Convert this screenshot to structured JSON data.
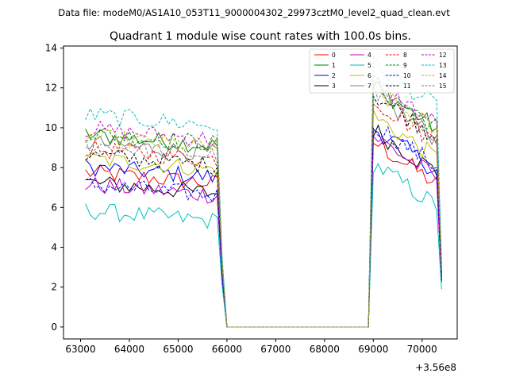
{
  "figure": {
    "suptitle": "Data file: modeM0/AS1A10_053T11_9000004302_29973cztM0_level2_quad_clean.evt"
  },
  "chart_data": {
    "type": "line",
    "title": "Quadrant 1 module wise count rates with 100.0s bins.",
    "xlabel": "",
    "ylabel": "",
    "x_offset_label": "+3.56e8",
    "xlim": [
      62650,
      70720
    ],
    "ylim": [
      -0.6,
      14.1
    ],
    "xticks": [
      63000,
      64000,
      65000,
      66000,
      67000,
      68000,
      69000,
      70000
    ],
    "yticks": [
      0,
      2,
      4,
      6,
      8,
      10,
      12,
      14
    ],
    "legend_position": "top-right",
    "segments": [
      {
        "x_start": 63100,
        "x_end": 65800,
        "description": "first good-time interval"
      },
      {
        "x_start": 66000,
        "x_end": 68900,
        "description": "data gap (zero rate)"
      },
      {
        "x_start": 69000,
        "x_end": 70400,
        "description": "second good-time interval"
      }
    ],
    "series": [
      {
        "name": "0",
        "color": "#ff0000",
        "dash": "solid",
        "level1": 7.4,
        "level2": 8.0,
        "drop": 2.5
      },
      {
        "name": "1",
        "color": "#008000",
        "dash": "solid",
        "level1": 9.3,
        "level2": 10.8,
        "drop": 3.2
      },
      {
        "name": "2",
        "color": "#0000ff",
        "dash": "solid",
        "level1": 7.7,
        "level2": 8.7,
        "drop": 2.7
      },
      {
        "name": "3",
        "color": "#000000",
        "dash": "solid",
        "level1": 6.9,
        "level2": 8.6,
        "drop": 2.6
      },
      {
        "name": "4",
        "color": "#bf00bf",
        "dash": "solid",
        "level1": 6.8,
        "level2": 8.3,
        "drop": 2.5
      },
      {
        "name": "5",
        "color": "#00bfbf",
        "dash": "solid",
        "level1": 5.5,
        "level2": 6.9,
        "drop": 2.1
      },
      {
        "name": "6",
        "color": "#bfbf00",
        "dash": "solid",
        "level1": 8.1,
        "level2": 9.3,
        "drop": 2.9
      },
      {
        "name": "7",
        "color": "#808080",
        "dash": "solid",
        "level1": 8.9,
        "level2": 10.3,
        "drop": 3.0
      },
      {
        "name": "8",
        "color": "#ff0000",
        "dash": "dashed",
        "level1": 8.6,
        "level2": 10.1,
        "drop": 2.9
      },
      {
        "name": "9",
        "color": "#008000",
        "dash": "dashed",
        "level1": 9.4,
        "level2": 10.9,
        "drop": 3.3
      },
      {
        "name": "10",
        "color": "#0000ff",
        "dash": "dashed",
        "level1": 6.8,
        "level2": 8.9,
        "drop": 2.6
      },
      {
        "name": "11",
        "color": "#000000",
        "dash": "dashed",
        "level1": 8.3,
        "level2": 10.4,
        "drop": 3.0
      },
      {
        "name": "12",
        "color": "#bf00bf",
        "dash": "dashed",
        "level1": 9.6,
        "level2": 11.0,
        "drop": 3.4
      },
      {
        "name": "13",
        "color": "#00bfbf",
        "dash": "dashed",
        "level1": 10.3,
        "level2": 11.9,
        "drop": 3.6
      },
      {
        "name": "14",
        "color": "#bfbf00",
        "dash": "dashed",
        "level1": 9.2,
        "level2": 10.6,
        "drop": 3.2
      },
      {
        "name": "15",
        "color": "#808080",
        "dash": "dashed",
        "level1": 8.8,
        "level2": 10.5,
        "drop": 3.1
      }
    ]
  }
}
